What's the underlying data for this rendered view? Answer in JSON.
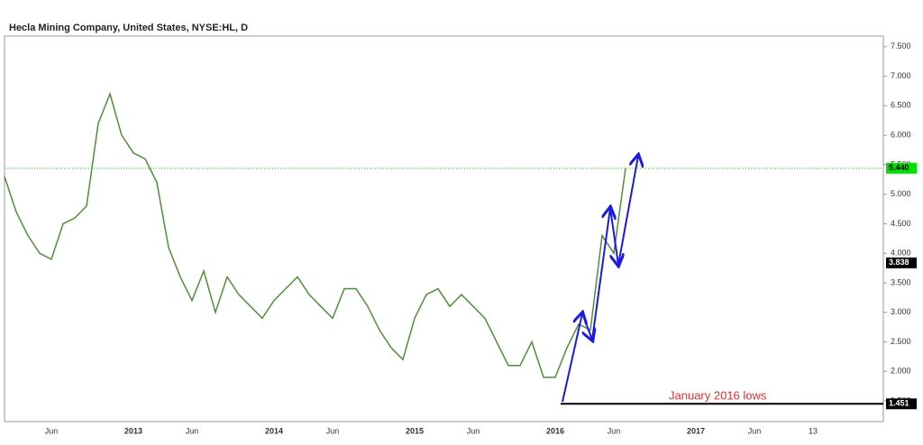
{
  "chart_data": {
    "type": "line",
    "title": "Hecla Mining Company, United States, NYSE:HL, D",
    "categories": [
      null,
      null,
      null,
      null,
      "Jun",
      null,
      null,
      null,
      null,
      null,
      null,
      "2013",
      null,
      null,
      null,
      null,
      "Jun",
      null,
      null,
      null,
      null,
      null,
      null,
      "2014",
      null,
      null,
      null,
      null,
      "Jun",
      null,
      null,
      null,
      null,
      null,
      null,
      "2015",
      null,
      null,
      null,
      null,
      "Jun",
      null,
      null,
      null,
      null,
      null,
      null,
      "2016",
      null,
      null,
      null,
      null,
      "Jun",
      null,
      null,
      null,
      null,
      null,
      null,
      "2017",
      null,
      null,
      null,
      null,
      "Jun",
      null,
      null,
      null,
      null,
      "13",
      null,
      null,
      null,
      null,
      null
    ],
    "series": [
      {
        "name": "HL",
        "color": "#4f8f3a",
        "values": [
          5.3,
          4.7,
          4.3,
          4.0,
          3.9,
          4.5,
          4.6,
          4.8,
          6.2,
          6.7,
          6.0,
          5.7,
          5.6,
          5.2,
          4.1,
          3.6,
          3.2,
          3.7,
          3.0,
          3.6,
          3.3,
          3.1,
          2.9,
          3.2,
          3.4,
          3.6,
          3.3,
          3.1,
          2.9,
          3.4,
          3.4,
          3.1,
          2.7,
          2.4,
          2.2,
          2.9,
          3.3,
          3.4,
          3.1,
          3.3,
          3.1,
          2.9,
          2.5,
          2.1,
          2.1,
          2.5,
          1.9,
          1.9,
          2.4,
          2.8,
          2.7,
          4.3,
          4.0,
          5.44,
          null,
          null,
          null,
          null,
          null,
          null,
          null,
          null,
          null,
          null,
          null,
          null,
          null,
          null,
          null,
          null,
          null,
          null,
          null,
          null,
          null
        ]
      }
    ],
    "ylim": [
      1.15,
      7.68
    ],
    "yticks": [
      {
        "value": 1.5,
        "label": "1.500"
      },
      {
        "value": 2,
        "label": "2.000"
      },
      {
        "value": 2.5,
        "label": "2.500"
      },
      {
        "value": 3,
        "label": "3.000"
      },
      {
        "value": 3.5,
        "label": "3.500"
      },
      {
        "value": 4,
        "label": "4.000"
      },
      {
        "value": 4.5,
        "label": "4.500"
      },
      {
        "value": 5,
        "label": "5.000"
      },
      {
        "value": 5.5,
        "label": "5.500"
      },
      {
        "value": 6,
        "label": "6.000"
      },
      {
        "value": 6.5,
        "label": "6.500"
      },
      {
        "value": 7,
        "label": "7.000"
      },
      {
        "value": 7.5,
        "label": "7.500"
      }
    ],
    "price_markers": [
      {
        "value": 5.44,
        "label": "5.440",
        "color": "#00e000",
        "line": "dotted"
      },
      {
        "value": 3.838,
        "label": "3.838",
        "color": "#000000"
      },
      {
        "value": 1.451,
        "label": "1.451",
        "color": "#000000",
        "line": "solid"
      }
    ],
    "annotation": {
      "text": "January 2016 lows",
      "color": "#e03030"
    }
  }
}
